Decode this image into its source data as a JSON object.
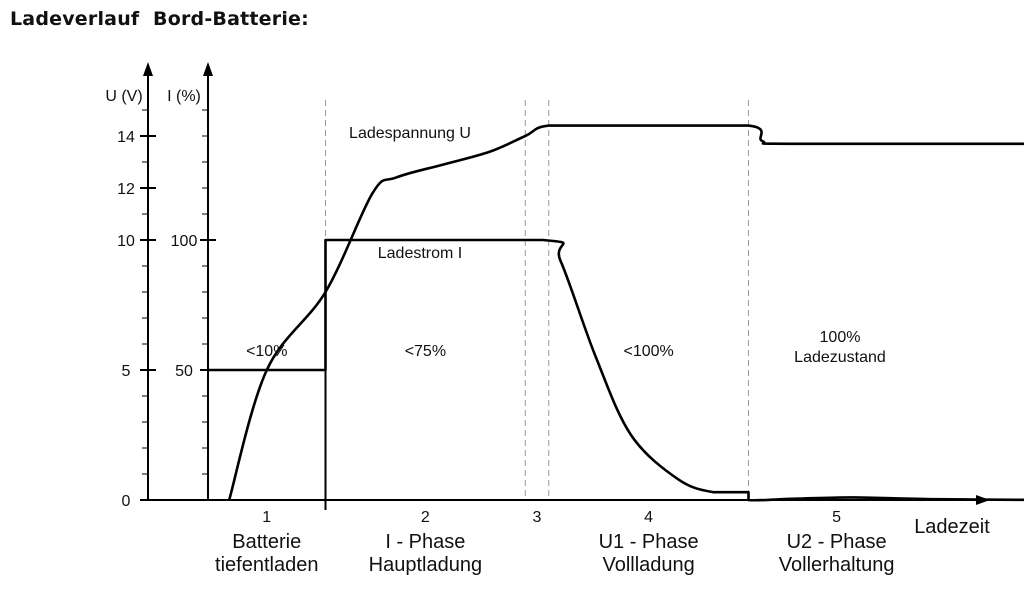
{
  "title": "Ladeverlauf  Bord-Batterie:",
  "chart_data": {
    "type": "line",
    "x_axis": {
      "label": "Ladezeit"
    },
    "y_axis_voltage": {
      "unit_label": "U (V)",
      "ticks": [
        0,
        5,
        10,
        12,
        14
      ],
      "range": [
        0,
        15
      ]
    },
    "y_axis_current": {
      "unit_label": "I (%)",
      "ticks": [
        50,
        100
      ],
      "range": [
        0,
        150
      ]
    },
    "phase_boundaries": [
      1.0,
      2.7,
      2.9,
      4.6
    ],
    "phases": [
      {
        "number": "1",
        "name_line1": "Batterie",
        "name_line2": "tiefentladen",
        "current_label": "<10%"
      },
      {
        "number": "2",
        "name_line1": "I - Phase",
        "name_line2": "Hauptladung",
        "current_label": "<75%"
      },
      {
        "number": "3",
        "name_line1": "",
        "name_line2": "",
        "current_label": ""
      },
      {
        "number": "4",
        "name_line1": "U1 - Phase",
        "name_line2": "Vollladung",
        "current_label": "<100%"
      },
      {
        "number": "5",
        "name_line1": "U2 - Phase",
        "name_line2": "Vollerhaltung",
        "current_label": ""
      }
    ],
    "state_label_line1": "100%",
    "state_label_line2": "Ladezustand",
    "series": [
      {
        "name": "Ladespannung U",
        "axis": "voltage",
        "points": [
          [
            0.18,
            0
          ],
          [
            0.5,
            5
          ],
          [
            1.0,
            8.0
          ],
          [
            1.4,
            11.8
          ],
          [
            1.6,
            12.4
          ],
          [
            2.0,
            12.9
          ],
          [
            2.4,
            13.4
          ],
          [
            2.7,
            14.0
          ],
          [
            2.9,
            14.4
          ],
          [
            3.5,
            14.4
          ],
          [
            4.6,
            14.4
          ],
          [
            4.72,
            13.8
          ],
          [
            5.0,
            13.7
          ],
          [
            7.3,
            13.7
          ]
        ]
      },
      {
        "name": "Ladestrom I",
        "axis": "current",
        "points": [
          [
            0,
            50
          ],
          [
            1.0,
            50
          ],
          [
            1.0,
            100
          ],
          [
            2.85,
            100
          ],
          [
            3.0,
            92
          ],
          [
            3.3,
            55
          ],
          [
            3.6,
            25
          ],
          [
            4.0,
            8
          ],
          [
            4.3,
            3
          ],
          [
            4.6,
            3
          ],
          [
            4.6,
            0
          ],
          [
            5.0,
            0.5
          ],
          [
            5.5,
            1
          ],
          [
            6.2,
            0.3
          ],
          [
            7.3,
            0
          ]
        ]
      }
    ]
  }
}
